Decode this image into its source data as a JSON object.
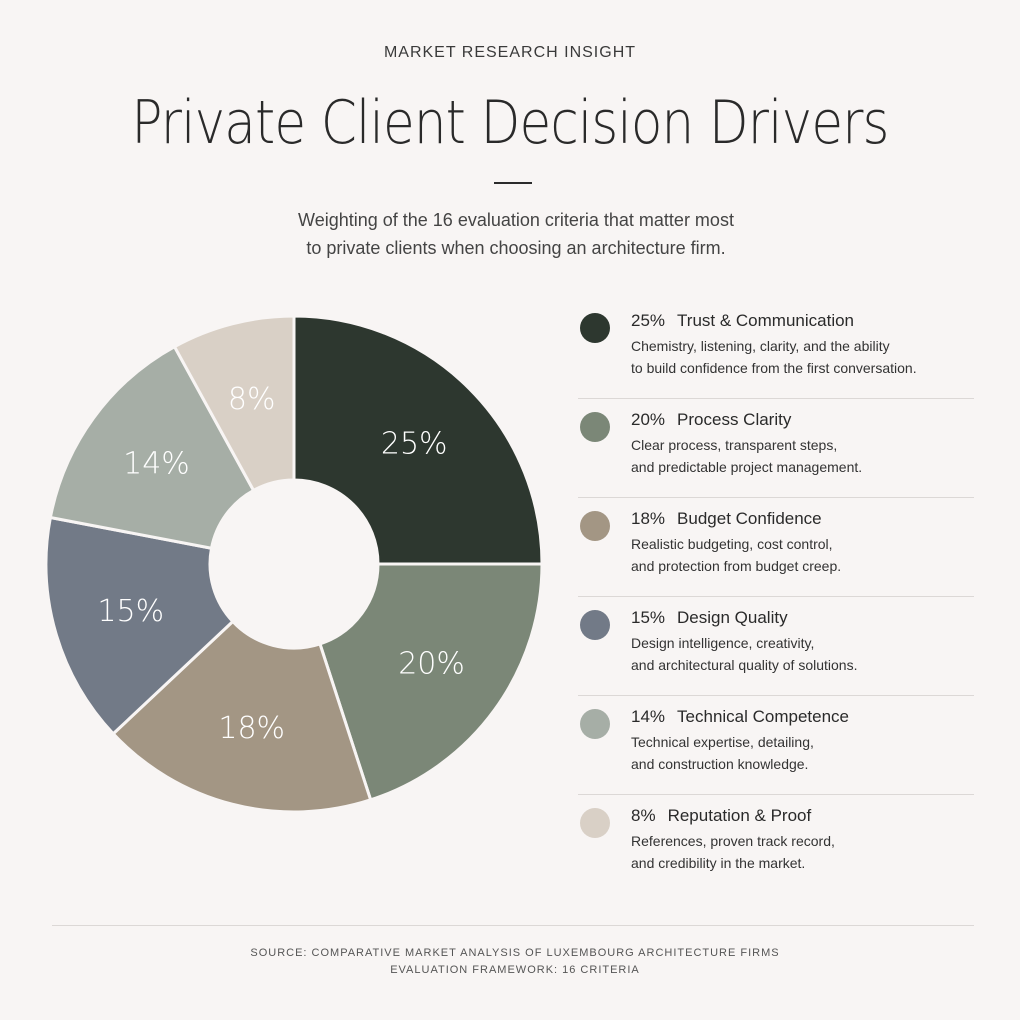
{
  "eyebrow": "MARKET RESEARCH INSIGHT",
  "title": "Private Client Decision Drivers",
  "subtitle": {
    "line1": "Weighting of the 16 evaluation criteria that matter most",
    "line2": "to private clients when choosing an architecture firm."
  },
  "chart_data": {
    "type": "pie",
    "donut": true,
    "unit": "%",
    "categories": [
      "Trust & Communication",
      "Process Clarity",
      "Budget Confidence",
      "Design Quality",
      "Technical Competence",
      "Reputation & Proof"
    ],
    "values": [
      25,
      20,
      18,
      15,
      14,
      8
    ],
    "labels": [
      "25%",
      "20%",
      "18%",
      "15%",
      "14%",
      "8%"
    ],
    "colors": [
      "#2d372f",
      "#7b8777",
      "#a39684",
      "#727a87",
      "#a6aea6",
      "#d9d0c6"
    ],
    "label_colors": [
      "#ffffff",
      "#ffffff",
      "#ffffff",
      "#ffffff",
      "#ffffff",
      "#ffffff"
    ],
    "legend_position": "right",
    "start": "top",
    "direction": "clockwise"
  },
  "legend": [
    {
      "pct": "25%",
      "name": "Trust & Communication",
      "desc1": "Chemistry, listening, clarity, and the ability",
      "desc2": "to build confidence from the first conversation.",
      "color": "#2d372f"
    },
    {
      "pct": "20%",
      "name": "Process Clarity",
      "desc1": "Clear process, transparent steps,",
      "desc2": "and predictable project management.",
      "color": "#7b8777"
    },
    {
      "pct": "18%",
      "name": "Budget Confidence",
      "desc1": "Realistic budgeting, cost control,",
      "desc2": "and protection from budget creep.",
      "color": "#a39684"
    },
    {
      "pct": "15%",
      "name": "Design Quality",
      "desc1": "Design intelligence, creativity,",
      "desc2": "and architectural quality of solutions.",
      "color": "#727a87"
    },
    {
      "pct": "14%",
      "name": "Technical Competence",
      "desc1": "Technical expertise, detailing,",
      "desc2": "and construction knowledge.",
      "color": "#a6aea6"
    },
    {
      "pct": "8%",
      "name": "Reputation & Proof",
      "desc1": "References, proven track record,",
      "desc2": "and credibility in the market.",
      "color": "#d9d0c6"
    }
  ],
  "footer": {
    "line1": "SOURCE: COMPARATIVE MARKET ANALYSIS OF LUXEMBOURG ARCHITECTURE FIRMS",
    "line2": "EVALUATION FRAMEWORK:  16 CRITERIA"
  }
}
